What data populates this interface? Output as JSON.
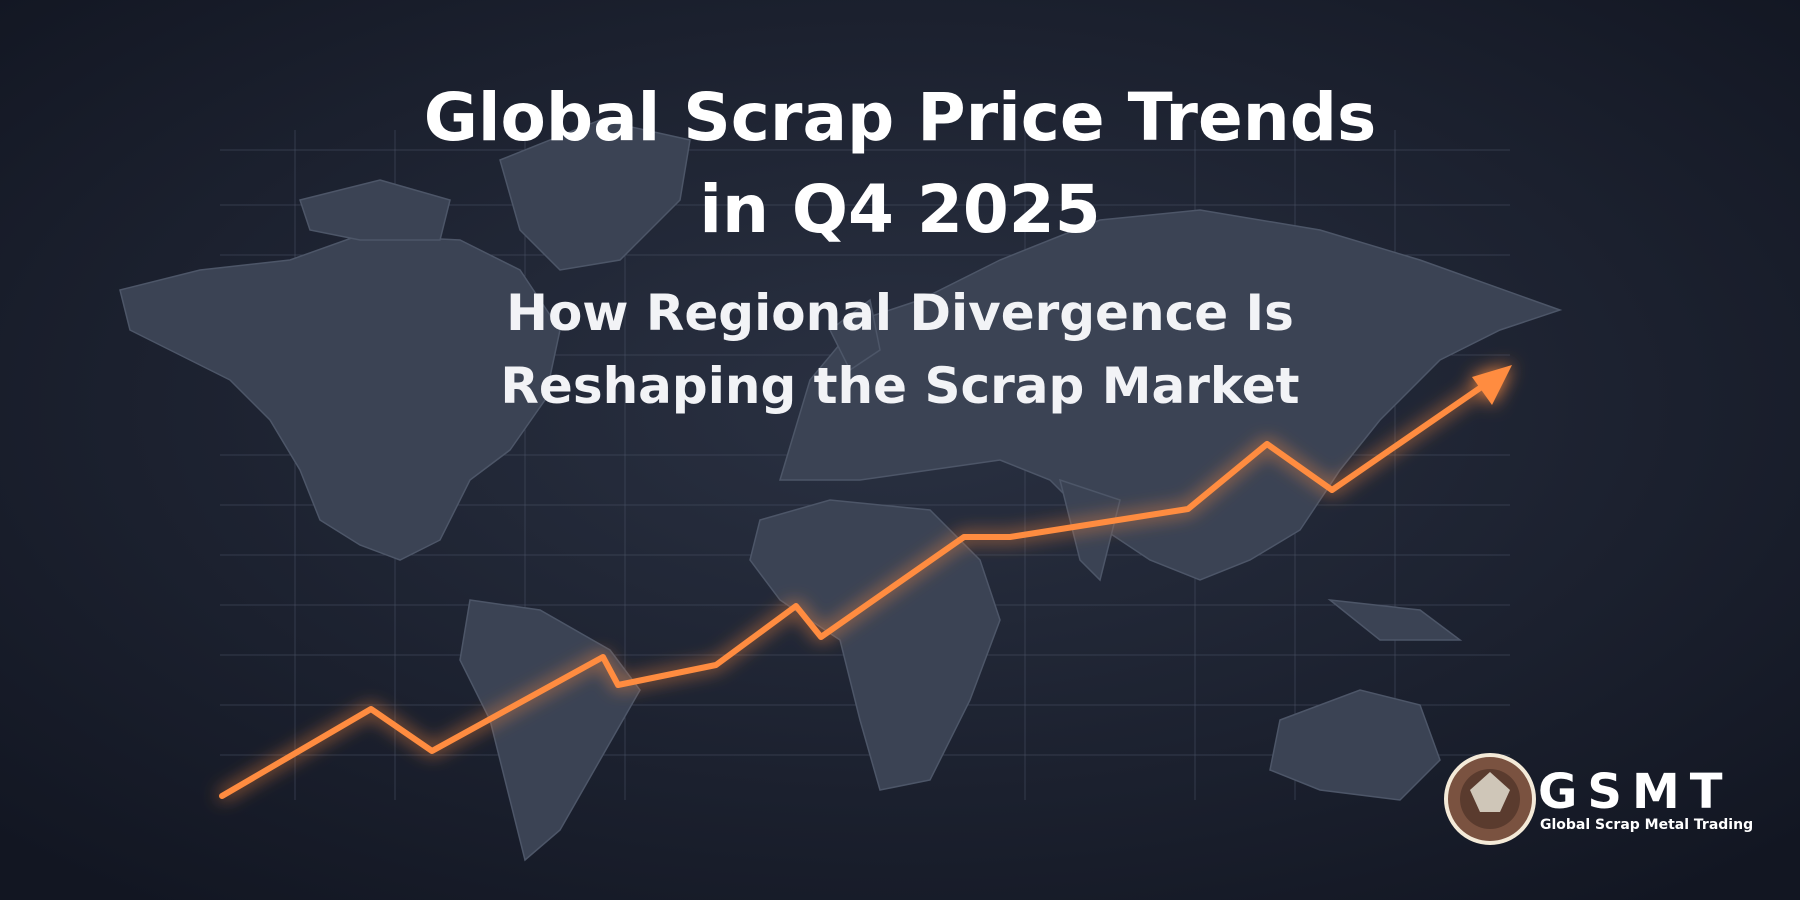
{
  "header": {
    "title_lines": [
      "Global Scrap Price Trends",
      "in Q4 2025"
    ],
    "subtitle_lines": [
      "How Regional Divergence Is",
      "Reshaping the Scrap Market"
    ]
  },
  "logo": {
    "name": "GSMT",
    "tagline": "Global Scrap Metal Trading"
  }
}
